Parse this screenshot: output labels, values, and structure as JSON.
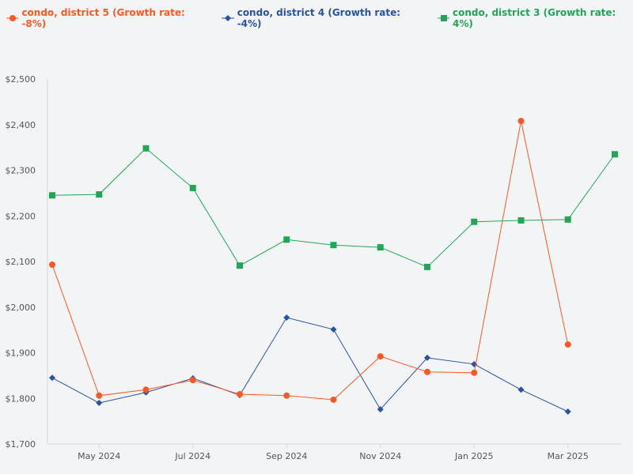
{
  "chart_data": {
    "type": "line",
    "categories": [
      "Apr 2024",
      "May 2024",
      "Jun 2024",
      "Jul 2024",
      "Aug 2024",
      "Sep 2024",
      "Oct 2024",
      "Nov 2024",
      "Dec 2024",
      "Jan 2025",
      "Feb 2025",
      "Mar 2025",
      "Apr 2025"
    ],
    "x_tick_labels": [
      "May 2024",
      "Jul 2024",
      "Sep 2024",
      "Nov 2024",
      "Jan 2025",
      "Mar 2025"
    ],
    "y_tick_labels": [
      "$1,700",
      "$1,800",
      "$1,900",
      "$2,000",
      "$2,100",
      "$2,200",
      "$2,300",
      "$2,400",
      "$2,500"
    ],
    "ylim": [
      1700,
      2500
    ],
    "grid": false,
    "legend_position": "top-left",
    "series": [
      {
        "name": "condo, district 5 (Growth rate: -8%)",
        "color": "#ff5722",
        "marker": "circle",
        "values": [
          2093,
          1806,
          1819,
          1840,
          1809,
          1806,
          1797,
          1892,
          1858,
          1856,
          2408,
          1918,
          null
        ]
      },
      {
        "name": "condo, district 4 (Growth rate: -4%)",
        "color": "#2a52a4",
        "marker": "diamond",
        "values": [
          1845,
          1790,
          1813,
          1844,
          1807,
          1977,
          1951,
          1776,
          1889,
          1875,
          1819,
          1771,
          null
        ]
      },
      {
        "name": "condo, district 3 (Growth rate: 4%)",
        "color": "#21a656",
        "marker": "square",
        "values": [
          2245,
          2247,
          2348,
          2261,
          2091,
          2148,
          2136,
          2131,
          2088,
          2187,
          2190,
          2192,
          2335
        ]
      }
    ]
  }
}
